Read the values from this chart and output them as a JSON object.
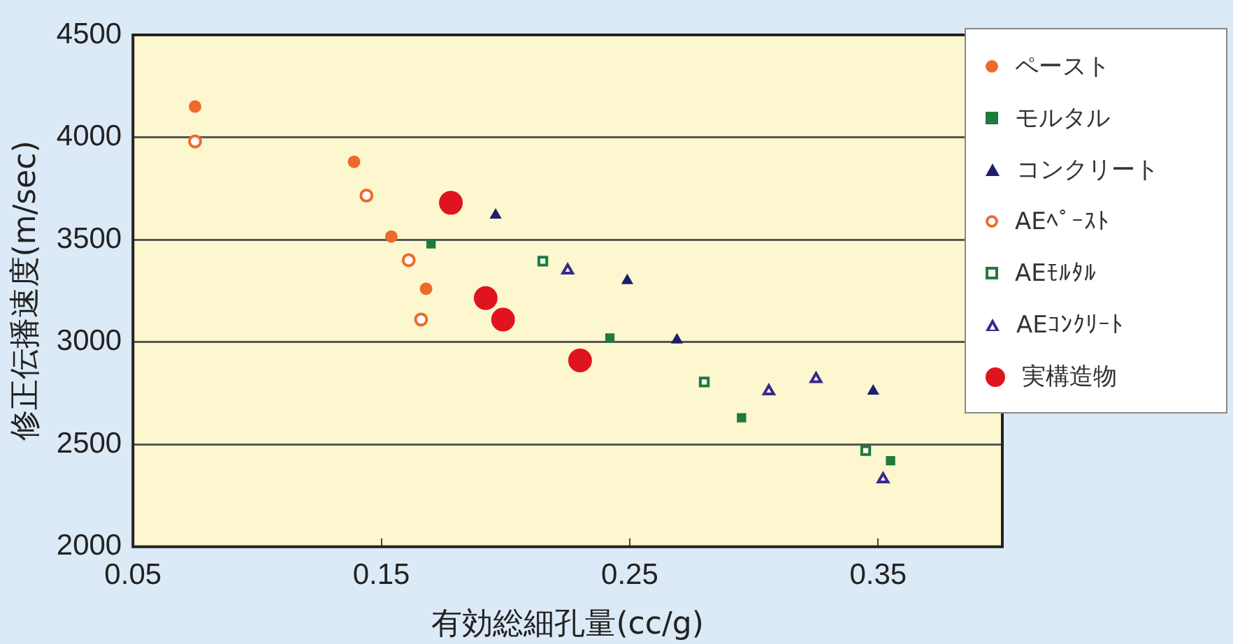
{
  "chart_data": {
    "type": "scatter",
    "xlabel": "有効総細孔量(cc/g)",
    "ylabel": "修正伝播速度(m/sec)",
    "xlim": [
      0.05,
      0.4
    ],
    "xticks": [
      0.05,
      0.15,
      0.25,
      0.35
    ],
    "ylim": [
      2000,
      4500
    ],
    "yticks": [
      2000,
      2500,
      3000,
      3500,
      4000,
      4500
    ],
    "grid": "y",
    "legend": "right",
    "series": [
      {
        "name": "ペースト",
        "color": "#ee6a2c",
        "marker": "circle",
        "x": [
          0.075,
          0.139,
          0.154,
          0.168
        ],
        "values": [
          4150,
          3880,
          3515,
          3260
        ]
      },
      {
        "name": "モルタル",
        "color": "#1f7a3e",
        "marker": "square",
        "x": [
          0.17,
          0.242,
          0.295,
          0.355
        ],
        "values": [
          3480,
          3020,
          2630,
          2420
        ]
      },
      {
        "name": "コンクリート",
        "color": "#1e1e6e",
        "marker": "triangle",
        "x": [
          0.196,
          0.249,
          0.269,
          0.348
        ],
        "values": [
          3620,
          3300,
          3010,
          2760
        ]
      },
      {
        "name": "AEﾍﾟｰｽﾄ",
        "color": "#ee6a2c",
        "marker": "circle",
        "x": [
          0.075,
          0.144,
          0.161,
          0.166
        ],
        "values": [
          3980,
          3715,
          3400,
          3110
        ]
      },
      {
        "name": "AEﾓﾙﾀﾙ",
        "color": "#1f7a3e",
        "marker": "square",
        "x": [
          0.215,
          0.28,
          0.345
        ],
        "values": [
          3395,
          2805,
          2470
        ]
      },
      {
        "name": "AEｺﾝｸﾘｰﾄ",
        "color": "#3a2a8a",
        "marker": "triangle",
        "x": [
          0.225,
          0.306,
          0.325,
          0.352
        ],
        "values": [
          3350,
          2760,
          2820,
          2330
        ]
      },
      {
        "name": "実構造物",
        "color": "#e0141e",
        "marker": "circle",
        "x": [
          0.178,
          0.192,
          0.199,
          0.23
        ],
        "values": [
          3680,
          3215,
          3110,
          2910
        ]
      }
    ]
  }
}
